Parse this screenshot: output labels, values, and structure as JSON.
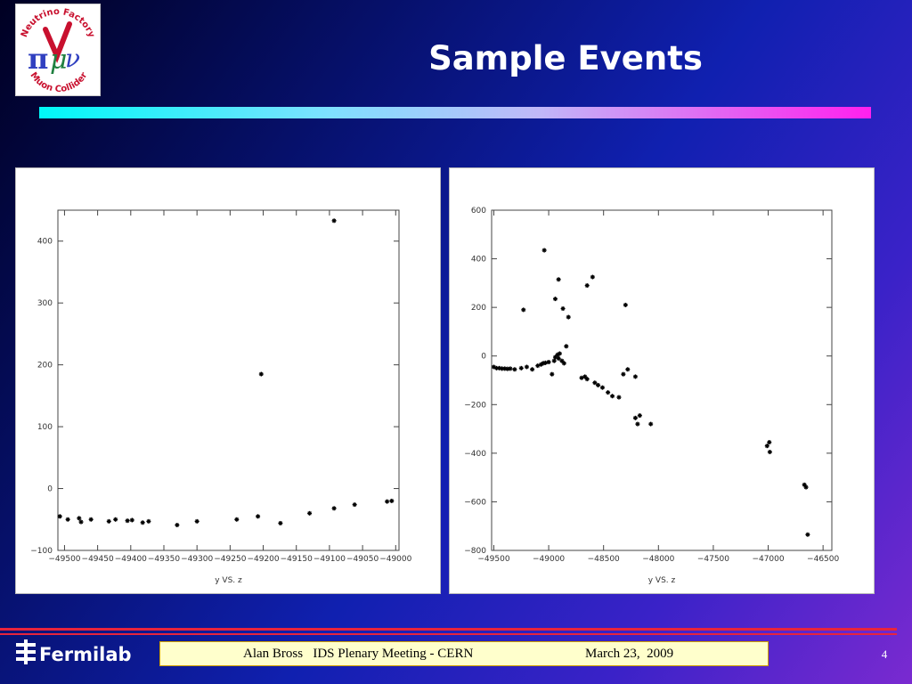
{
  "slide": {
    "title": "Sample Events",
    "page_number": "4",
    "logo_text_top": "Neutrino Factory",
    "logo_text_bottom": "Muon Collider",
    "footer": {
      "organization": "Fermilab",
      "presenter": "Alan Bross   IDS Plenary Meeting - CERN",
      "date": "March 23,  2009"
    }
  },
  "colors": {
    "title_bar_start": "#00f8f8",
    "title_bar_end": "#ff20ee",
    "footer_line": "#e8243c",
    "footer_box": "#ffffcc",
    "marker": "#000000"
  },
  "chart_data": [
    {
      "type": "scatter",
      "xlabel": "y VS. z",
      "ylabel": "",
      "xlim": [
        -49510,
        -48995
      ],
      "ylim": [
        -100,
        450
      ],
      "xticks": [
        -49500,
        -49450,
        -49400,
        -49350,
        -49300,
        -49250,
        -49200,
        -49150,
        -49100,
        -49050,
        -49000
      ],
      "xtick_labels": [
        "−49500",
        "−49450",
        "−49400",
        "−49350",
        "−49300",
        "−49250",
        "−49200",
        "−49150",
        "−49100",
        "−49050",
        "−49000"
      ],
      "yticks": [
        -100,
        0,
        100,
        200,
        300,
        400
      ],
      "ytick_labels": [
        "−100",
        "0",
        "100",
        "200",
        "300",
        "400"
      ],
      "grid": false,
      "series": [
        {
          "x": [
            -49507,
            -49495,
            -49478,
            -49475,
            -49460,
            -49433,
            -49423,
            -49405,
            -49398,
            -49382,
            -49373,
            -49330,
            -49300,
            -49240,
            -49208,
            -49174,
            -49130,
            -49093,
            -49062,
            -49013,
            -49006,
            -49203,
            -49093
          ],
          "y": [
            -45,
            -50,
            -48,
            -54,
            -50,
            -53,
            -50,
            -52,
            -51,
            -55,
            -53,
            -59,
            -53,
            -50,
            -45,
            -56,
            -40,
            -32,
            -26,
            -21,
            -20,
            185,
            433
          ]
        }
      ]
    },
    {
      "type": "scatter",
      "xlabel": "y VS. z",
      "ylabel": "",
      "xlim": [
        -49520,
        -46420
      ],
      "ylim": [
        -800,
        600
      ],
      "xticks": [
        -49500,
        -49000,
        -48500,
        -48000,
        -47500,
        -47000,
        -46500
      ],
      "xtick_labels": [
        "−49500",
        "−49000",
        "−48500",
        "−48000",
        "−47500",
        "−47000",
        "−46500"
      ],
      "yticks": [
        -800,
        -600,
        -400,
        -200,
        0,
        200,
        400,
        600
      ],
      "ytick_labels": [
        "−800",
        "−600",
        "−400",
        "−200",
        "0",
        "200",
        "400",
        "600"
      ],
      "grid": false,
      "series": [
        {
          "x": [
            -49500,
            -49475,
            -49450,
            -49425,
            -49400,
            -49375,
            -49350,
            -49310,
            -49250,
            -49200,
            -49150,
            -49100,
            -49070,
            -49050,
            -49030,
            -49000,
            -48970,
            -48950,
            -48940,
            -48920,
            -48900,
            -48880,
            -48860,
            -48840,
            -48700,
            -48670,
            -48650,
            -48580,
            -48550,
            -48510,
            -48460,
            -48420,
            -48360,
            -48320,
            -48280,
            -48210,
            -48190,
            -48170,
            -48070,
            -47010,
            -46990,
            -46985,
            -46670,
            -46655,
            -46640,
            -49230,
            -49040,
            -48940,
            -48870,
            -48820,
            -48910,
            -48650,
            -48600,
            -48300,
            -48210,
            -48910
          ],
          "y": [
            -45,
            -50,
            -50,
            -52,
            -52,
            -53,
            -52,
            -55,
            -50,
            -45,
            -55,
            -40,
            -35,
            -30,
            -28,
            -25,
            -75,
            -20,
            -5,
            5,
            10,
            -20,
            -30,
            40,
            -90,
            -85,
            -95,
            -110,
            -120,
            -130,
            -150,
            -165,
            -170,
            -75,
            -55,
            -85,
            -280,
            -245,
            -280,
            -370,
            -355,
            -395,
            -530,
            -540,
            -735,
            190,
            435,
            235,
            195,
            160,
            315,
            290,
            325,
            210,
            -255,
            -10
          ],
          "_note": ""
        }
      ]
    }
  ]
}
